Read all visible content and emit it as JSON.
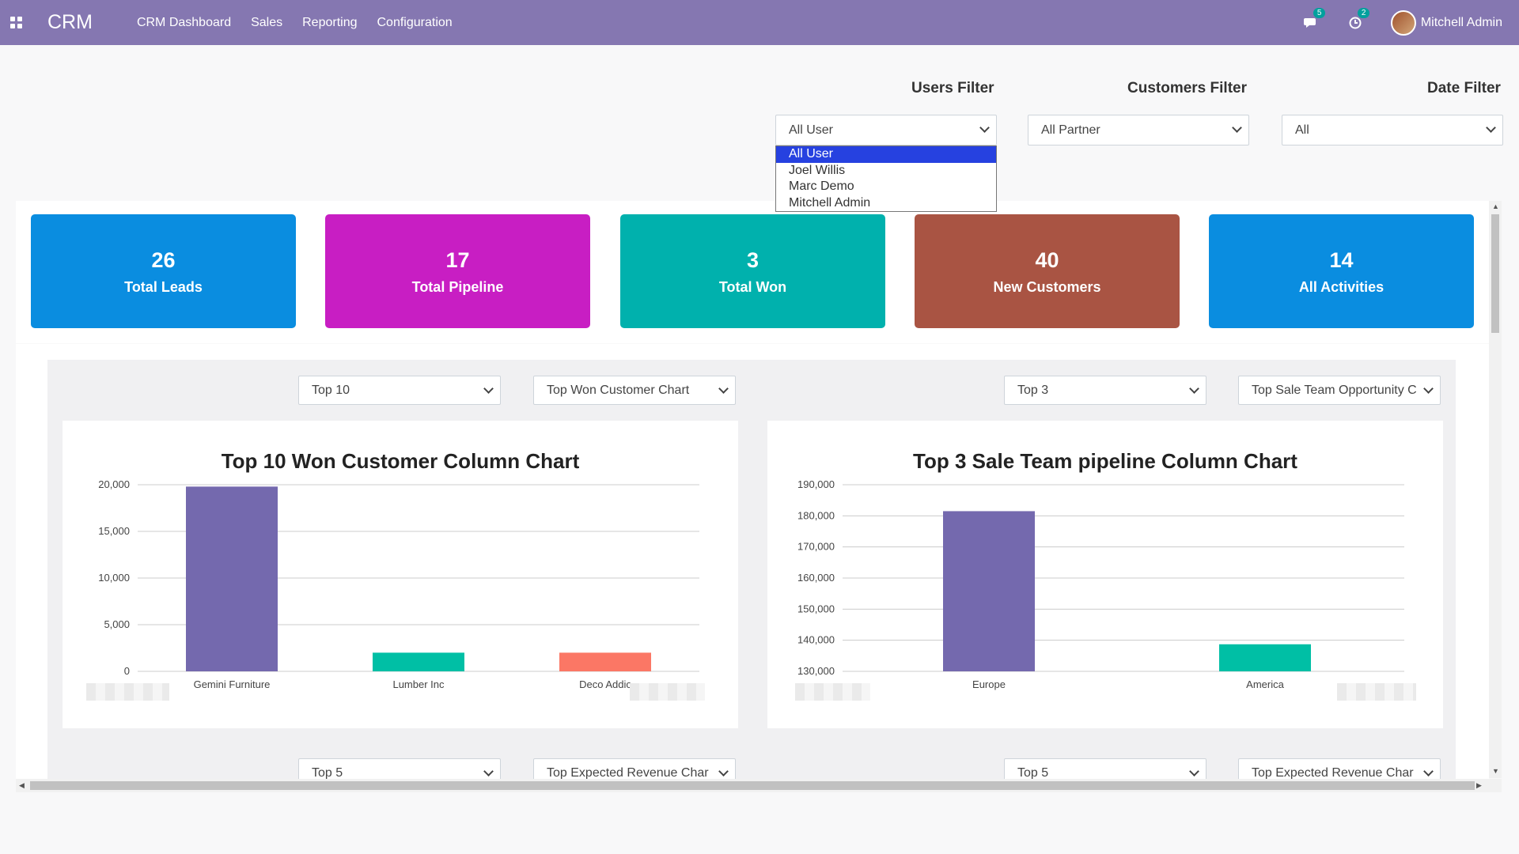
{
  "nav": {
    "brand": "CRM",
    "menu": [
      "CRM Dashboard",
      "Sales",
      "Reporting",
      "Configuration"
    ],
    "messages_badge": "5",
    "activities_badge": "2",
    "user": "Mitchell Admin"
  },
  "filters": {
    "users_label": "Users Filter",
    "customers_label": "Customers Filter",
    "date_label": "Date Filter",
    "users_value": "All User",
    "customers_value": "All Partner",
    "date_value": "All",
    "users_options": [
      "All User",
      "Joel Willis",
      "Marc Demo",
      "Mitchell Admin"
    ]
  },
  "kpis": [
    {
      "value": "26",
      "label": "Total Leads",
      "color": "#0a8de0"
    },
    {
      "value": "17",
      "label": "Total Pipeline",
      "color": "#c81ec3"
    },
    {
      "value": "3",
      "label": "Total Won",
      "color": "#00b1ad"
    },
    {
      "value": "40",
      "label": "New Customers",
      "color": "#a95443"
    },
    {
      "value": "14",
      "label": "All Activities",
      "color": "#0a8de0"
    }
  ],
  "chart_controls": {
    "left_top": "Top 10",
    "left_type": "Top Won Customer Chart",
    "right_top": "Top 3",
    "right_type": "Top Sale Team Opportunity C",
    "bottom_left_top": "Top 5",
    "bottom_left_type": "Top Expected Revenue Char",
    "bottom_right_top": "Top 5",
    "bottom_right_type": "Top Expected Revenue Char"
  },
  "chart_data": [
    {
      "type": "bar",
      "title": "Top 10 Won Customer Column Chart",
      "categories": [
        "Gemini Furniture",
        "Lumber Inc",
        "Deco Addic"
      ],
      "values": [
        19800,
        2000,
        2000
      ],
      "colors": [
        "#7469ae",
        "#00bfa5",
        "#fb7765"
      ],
      "ylim": [
        0,
        20000
      ],
      "yticks": [
        "20,000",
        "15,000",
        "10,000",
        "5,000",
        "0"
      ],
      "grid": true
    },
    {
      "type": "bar",
      "title": "Top 3 Sale Team pipeline Column Chart",
      "categories": [
        "Europe",
        "America"
      ],
      "values": [
        181500,
        138700
      ],
      "colors": [
        "#7469ae",
        "#00bfa5"
      ],
      "ylim": [
        130000,
        190000
      ],
      "yticks": [
        "190,000",
        "180,000",
        "170,000",
        "160,000",
        "150,000",
        "140,000",
        "130,000"
      ],
      "grid": true
    }
  ]
}
